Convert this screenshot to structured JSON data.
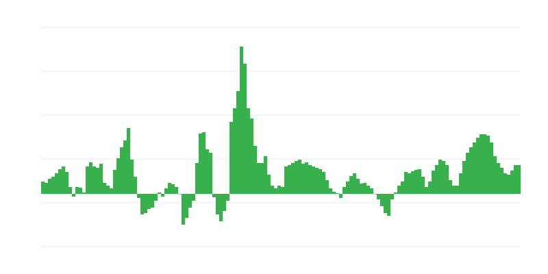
{
  "chart_data": {
    "type": "bar",
    "title": "",
    "xlabel": "",
    "ylabel": "",
    "grid": true,
    "legend": "none",
    "bar_color": "#38b04b",
    "gridline_color": "#ebebeb",
    "ylim": [
      -77,
      243
    ],
    "gridlines": [
      -77,
      -13,
      51,
      115,
      179,
      243
    ],
    "values": [
      18,
      16,
      22,
      25,
      30,
      36,
      40,
      32,
      10,
      -4,
      10,
      9,
      2,
      40,
      46,
      40,
      38,
      44,
      16,
      12,
      8,
      35,
      52,
      68,
      78,
      96,
      50,
      25,
      -6,
      -30,
      -28,
      -22,
      -20,
      -10,
      2,
      -4,
      8,
      16,
      14,
      10,
      0,
      -45,
      -35,
      -20,
      -10,
      45,
      88,
      90,
      65,
      60,
      -5,
      -30,
      -40,
      -25,
      -10,
      105,
      125,
      150,
      215,
      190,
      125,
      110,
      70,
      45,
      45,
      55,
      28,
      12,
      8,
      12,
      10,
      40,
      42,
      45,
      48,
      50,
      44,
      46,
      42,
      40,
      38,
      36,
      32,
      20,
      8,
      3,
      1,
      -6,
      10,
      18,
      26,
      30,
      22,
      15,
      16,
      12,
      8,
      0,
      -8,
      -18,
      -28,
      -32,
      -8,
      2,
      12,
      18,
      32,
      30,
      33,
      35,
      36,
      25,
      10,
      18,
      34,
      42,
      50,
      48,
      42,
      20,
      12,
      12,
      30,
      48,
      60,
      68,
      75,
      82,
      87,
      87,
      85,
      75,
      55,
      45,
      38,
      30,
      28,
      34,
      42,
      42
    ]
  }
}
